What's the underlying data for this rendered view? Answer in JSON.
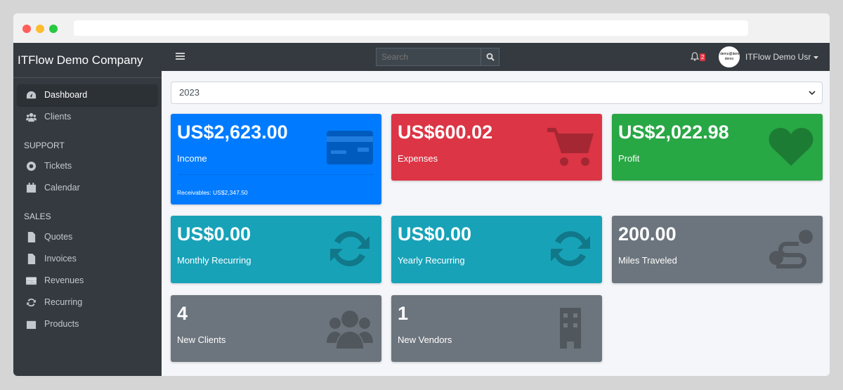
{
  "sidebar": {
    "brand": "ITFlow Demo Company",
    "items": [
      {
        "label": "Dashboard",
        "icon": "tachometer-icon"
      },
      {
        "label": "Clients",
        "icon": "users-icon"
      }
    ],
    "support_header": "SUPPORT",
    "support": [
      {
        "label": "Tickets",
        "icon": "life-ring-icon"
      },
      {
        "label": "Calendar",
        "icon": "calendar-icon"
      }
    ],
    "sales_header": "SALES",
    "sales": [
      {
        "label": "Quotes",
        "icon": "file-icon"
      },
      {
        "label": "Invoices",
        "icon": "file-invoice-icon"
      },
      {
        "label": "Revenues",
        "icon": "credit-card-icon"
      },
      {
        "label": "Recurring",
        "icon": "sync-icon"
      },
      {
        "label": "Products",
        "icon": "box-icon"
      }
    ]
  },
  "topbar": {
    "search_placeholder": "Search",
    "notifications": "2",
    "avatar_text": "demo@demo demo",
    "user": "ITFlow Demo Usr"
  },
  "year": "2023",
  "cards": [
    {
      "value": "US$2,623.00",
      "label": "Income",
      "footer": "Receivables: US$2,347.50",
      "color": "#007bff",
      "icon": "credit-card-icon"
    },
    {
      "value": "US$600.02",
      "label": "Expenses",
      "color": "#dc3545",
      "icon": "shopping-cart-icon"
    },
    {
      "value": "US$2,022.98",
      "label": "Profit",
      "color": "#28a745",
      "icon": "heart-icon"
    },
    {
      "value": "US$0.00",
      "label": "Monthly Recurring",
      "color": "#17a2b8",
      "icon": "sync-icon"
    },
    {
      "value": "US$0.00",
      "label": "Yearly Recurring",
      "color": "#17a2b8",
      "icon": "sync-icon"
    },
    {
      "value": "200.00",
      "label": "Miles Traveled",
      "color": "#6c757d",
      "icon": "route-icon"
    },
    {
      "value": "4",
      "label": "New Clients",
      "color": "#6c757d",
      "icon": "users-icon"
    },
    {
      "value": "1",
      "label": "New Vendors",
      "color": "#6c757d",
      "icon": "building-icon"
    }
  ]
}
